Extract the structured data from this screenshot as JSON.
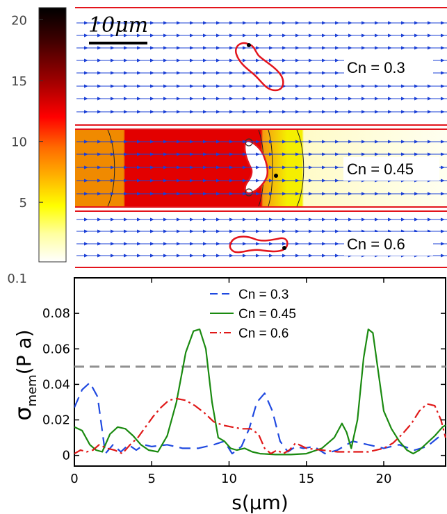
{
  "colorbar": {
    "ticks": [
      "20",
      "15",
      "10",
      "5",
      "0.1"
    ],
    "tick_values": [
      20,
      15,
      10,
      5,
      0.1
    ],
    "range": [
      0.1,
      21
    ],
    "colormap": [
      "#000000",
      "#3a0000",
      "#9a0000",
      "#ff0000",
      "#ff6a00",
      "#ffb000",
      "#ffff00",
      "#ffffa0",
      "#ffffff"
    ]
  },
  "scale_bar": {
    "label": "10μm"
  },
  "panels": [
    {
      "label": "Cn = 0.3"
    },
    {
      "label": "Cn = 0.45"
    },
    {
      "label": "Cn = 0.6"
    }
  ],
  "colors": {
    "wall": "#e3141c",
    "cell": "#e3141c",
    "streamline": "#1a3fd6",
    "heat_dark": "#e30000",
    "heat_mid": "#f08a00",
    "heat_yellow": "#f5ef00",
    "heat_light": "#fffbc8"
  },
  "chart_data": {
    "type": "line",
    "xlabel": "s(µm)",
    "ylabel": "σ",
    "ylabel_sub": "mem",
    "ylabel_unit": "(P a)",
    "xlim": [
      0,
      24
    ],
    "ylim": [
      -0.006,
      0.1
    ],
    "xticks": [
      0,
      5,
      10,
      15,
      20
    ],
    "yticks": [
      0,
      0.02,
      0.04,
      0.06,
      0.08,
      0.1
    ],
    "ytick_labels": [
      "0",
      "0.02",
      "0.04",
      "0.06",
      "0.08",
      "0.1"
    ],
    "threshold": 0.05,
    "series": [
      {
        "name": "Cn = 0.3",
        "color": "#1f49e0",
        "dash": "dash",
        "x": [
          0,
          0.5,
          1.0,
          1.5,
          2.0,
          2.5,
          3.0,
          3.5,
          4.0,
          4.5,
          5.0,
          6.0,
          7.0,
          8.0,
          9.0,
          9.7,
          10.2,
          10.8,
          11.3,
          11.8,
          12.3,
          12.8,
          13.3,
          13.8,
          14.3,
          14.8,
          15.5,
          16.2,
          17.0,
          18.0,
          19.0,
          20.0,
          21.0,
          22.0,
          22.8,
          23.5,
          24.0
        ],
        "y": [
          0.027,
          0.037,
          0.041,
          0.033,
          0.001,
          0.006,
          0.002,
          0.006,
          0.003,
          0.006,
          0.005,
          0.006,
          0.004,
          0.004,
          0.006,
          0.008,
          0.001,
          0.005,
          0.015,
          0.03,
          0.035,
          0.025,
          0.008,
          0.002,
          0.005,
          0.004,
          0.005,
          0.001,
          0.003,
          0.008,
          0.006,
          0.004,
          0.006,
          0.003,
          0.005,
          0.01,
          0.012
        ]
      },
      {
        "name": "Cn = 0.45",
        "color": "#1a8a10",
        "dash": "solid",
        "x": [
          0,
          0.5,
          1.0,
          1.4,
          1.8,
          2.3,
          2.8,
          3.3,
          3.8,
          4.3,
          4.8,
          5.4,
          6.0,
          6.6,
          7.2,
          7.7,
          8.1,
          8.5,
          8.9,
          9.3,
          9.7,
          10.1,
          10.5,
          11.0,
          11.5,
          12.0,
          13.0,
          14.0,
          15.0,
          16.0,
          16.8,
          17.3,
          17.6,
          17.9,
          18.3,
          18.7,
          19.0,
          19.3,
          19.6,
          20.0,
          20.5,
          21.0,
          21.5,
          21.9,
          22.3,
          22.8,
          23.3,
          23.8,
          24.0
        ],
        "y": [
          0.016,
          0.014,
          0.006,
          0.003,
          0.002,
          0.012,
          0.016,
          0.015,
          0.011,
          0.006,
          0.003,
          0.002,
          0.011,
          0.03,
          0.058,
          0.07,
          0.071,
          0.06,
          0.03,
          0.01,
          0.008,
          0.004,
          0.003,
          0.004,
          0.002,
          0.001,
          0.0005,
          0.0005,
          0.001,
          0.004,
          0.01,
          0.018,
          0.013,
          0.004,
          0.02,
          0.055,
          0.071,
          0.069,
          0.05,
          0.025,
          0.015,
          0.008,
          0.003,
          0.001,
          0.003,
          0.007,
          0.011,
          0.016,
          0.017
        ]
      },
      {
        "name": "Cn = 0.6",
        "color": "#e01818",
        "dash": "dashdot",
        "x": [
          0,
          0.4,
          0.8,
          1.2,
          1.6,
          2.1,
          2.6,
          3.1,
          3.6,
          4.1,
          4.6,
          5.1,
          5.6,
          6.1,
          6.6,
          7.2,
          7.8,
          8.4,
          9.0,
          9.6,
          10.2,
          10.8,
          11.4,
          11.9,
          12.3,
          12.7,
          13.1,
          13.5,
          13.9,
          14.3,
          15.0,
          16.0,
          17.0,
          18.0,
          19.0,
          20.0,
          20.6,
          21.2,
          21.8,
          22.3,
          22.8,
          23.3,
          23.7,
          24.0
        ],
        "y": [
          0.001,
          0.003,
          0.002,
          0.003,
          0.006,
          0.004,
          0.003,
          0.001,
          0.006,
          0.01,
          0.016,
          0.022,
          0.027,
          0.031,
          0.032,
          0.031,
          0.028,
          0.024,
          0.019,
          0.017,
          0.016,
          0.015,
          0.015,
          0.012,
          0.004,
          0.001,
          0.003,
          0.001,
          0.003,
          0.007,
          0.004,
          0.003,
          0.002,
          0.002,
          0.002,
          0.004,
          0.007,
          0.012,
          0.018,
          0.025,
          0.029,
          0.028,
          0.02,
          0.01
        ]
      }
    ]
  }
}
